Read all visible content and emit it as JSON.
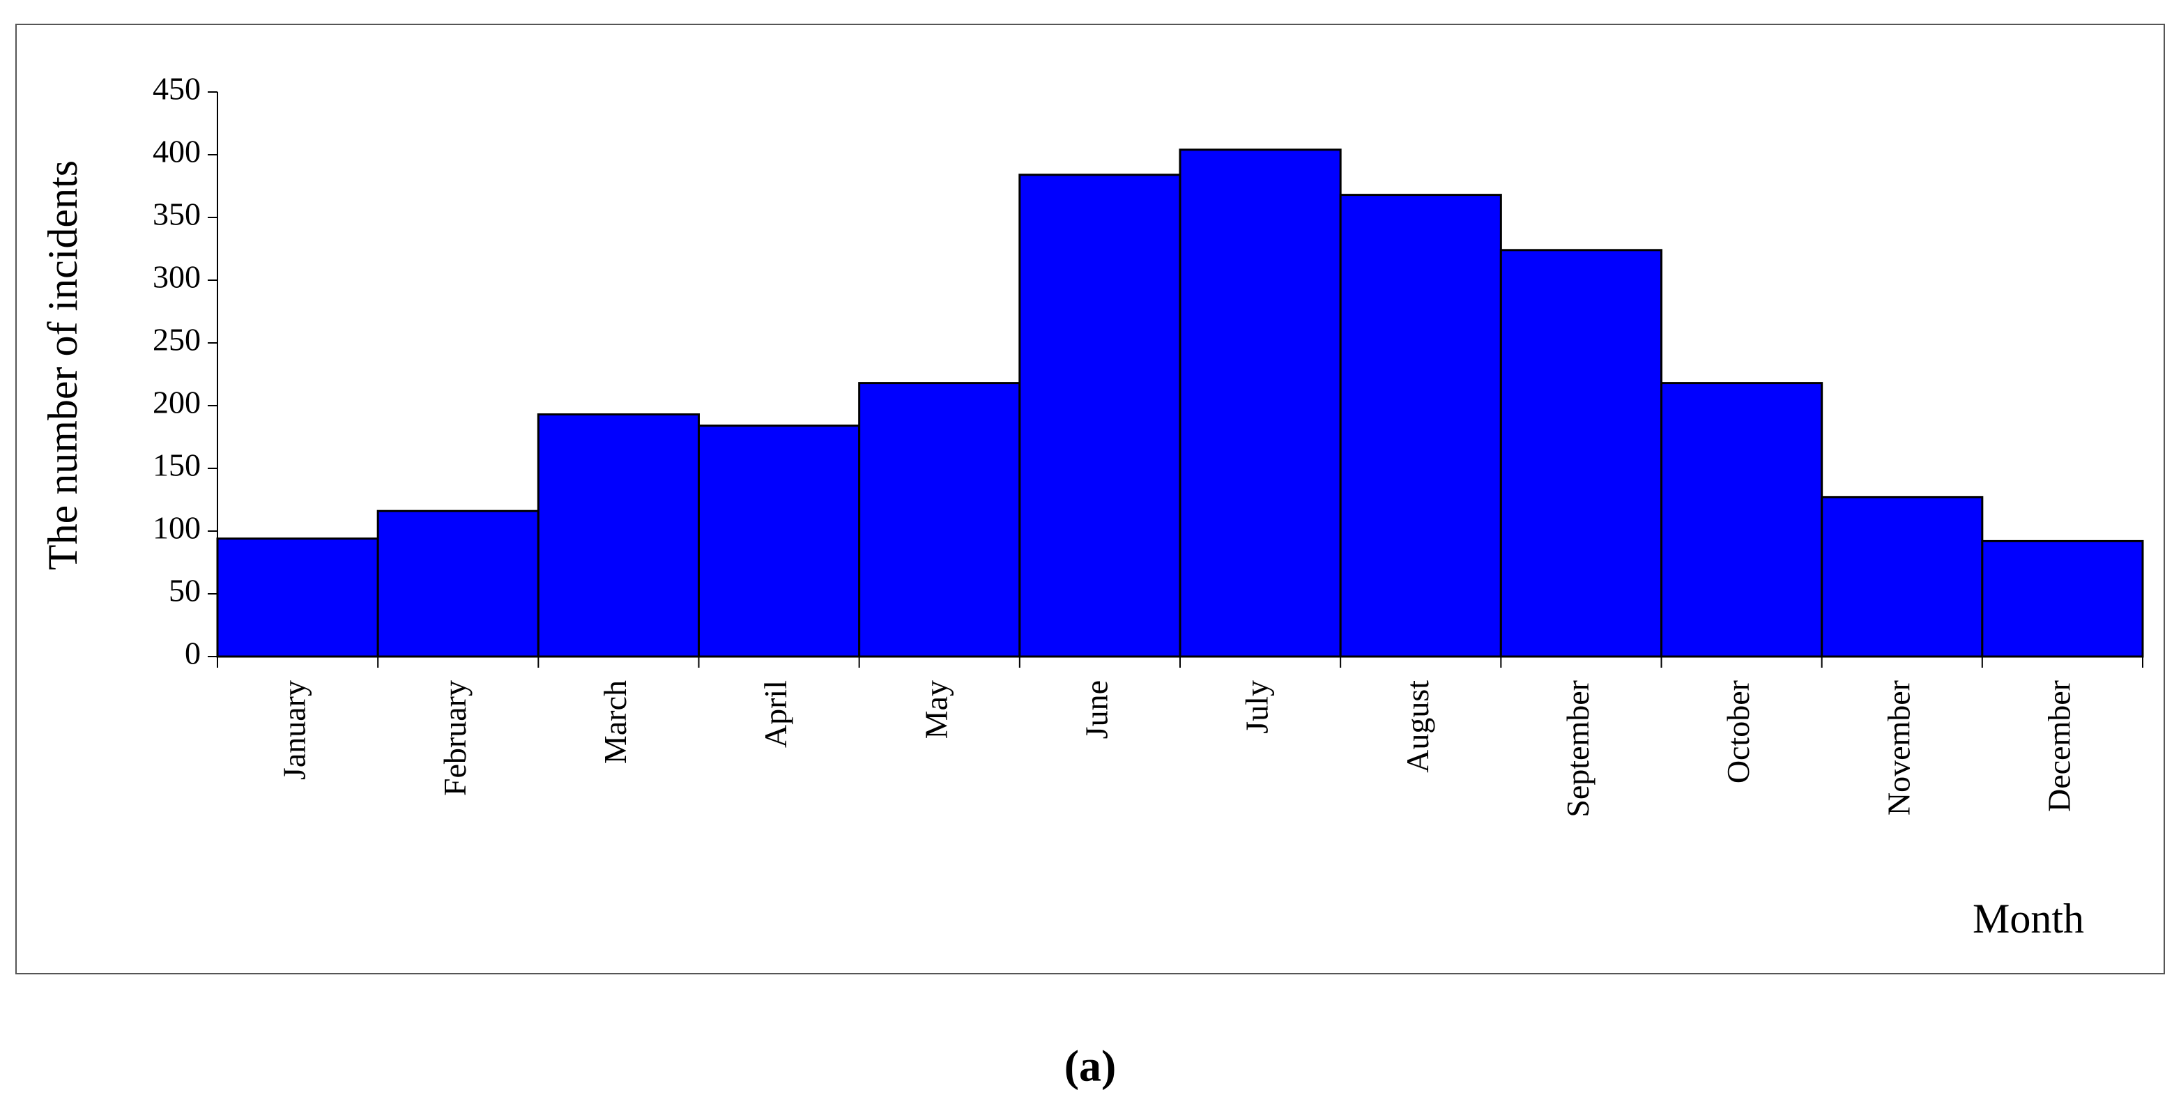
{
  "chart_data": {
    "type": "bar",
    "y_label": "The number of incidents",
    "x_label": "Month",
    "caption": "(a)",
    "categories": [
      "January",
      "February",
      "March",
      "April",
      "May",
      "June",
      "July",
      "August",
      "September",
      "October",
      "November",
      "December"
    ],
    "values": [
      94,
      116,
      193,
      184,
      218,
      384,
      404,
      368,
      324,
      218,
      127,
      92
    ],
    "color": "#0000ff",
    "ylim": [
      0,
      450
    ],
    "yticks": [
      0,
      50,
      100,
      150,
      200,
      250,
      300,
      350,
      400,
      450
    ],
    "grid": false
  }
}
